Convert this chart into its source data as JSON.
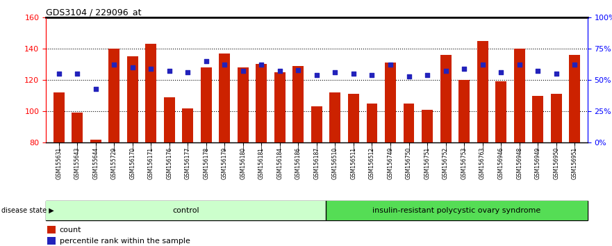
{
  "title": "GDS3104 / 229096_at",
  "samples": [
    "GSM155631",
    "GSM155643",
    "GSM155644",
    "GSM155729",
    "GSM156170",
    "GSM156171",
    "GSM156176",
    "GSM156177",
    "GSM156178",
    "GSM156179",
    "GSM156180",
    "GSM156181",
    "GSM156184",
    "GSM156186",
    "GSM156187",
    "GSM156510",
    "GSM156511",
    "GSM156512",
    "GSM156749",
    "GSM156750",
    "GSM156751",
    "GSM156752",
    "GSM156753",
    "GSM156763",
    "GSM156946",
    "GSM156948",
    "GSM156949",
    "GSM156950",
    "GSM156951"
  ],
  "counts": [
    112,
    99,
    82,
    140,
    135,
    143,
    109,
    102,
    128,
    137,
    128,
    130,
    125,
    129,
    103,
    112,
    111,
    105,
    131,
    105,
    101,
    136,
    120,
    145,
    119,
    140,
    110,
    111,
    136
  ],
  "percentiles": [
    55,
    55,
    43,
    62,
    60,
    59,
    57,
    56,
    65,
    62,
    57,
    62,
    57,
    58,
    54,
    56,
    55,
    54,
    62,
    53,
    54,
    57,
    59,
    62,
    56,
    62,
    57,
    55,
    62
  ],
  "control_count": 15,
  "disease_count": 14,
  "ylim_left": [
    80,
    160
  ],
  "ylim_right": [
    0,
    100
  ],
  "yticks_left": [
    80,
    100,
    120,
    140,
    160
  ],
  "yticks_right": [
    0,
    25,
    50,
    75,
    100
  ],
  "ytick_labels_right": [
    "0%",
    "25%",
    "50%",
    "75%",
    "100%"
  ],
  "bar_color": "#cc2200",
  "dot_color": "#2222bb",
  "control_bg": "#ccffcc",
  "disease_bg": "#55dd55",
  "bar_baseline": 80,
  "bar_width": 0.6
}
